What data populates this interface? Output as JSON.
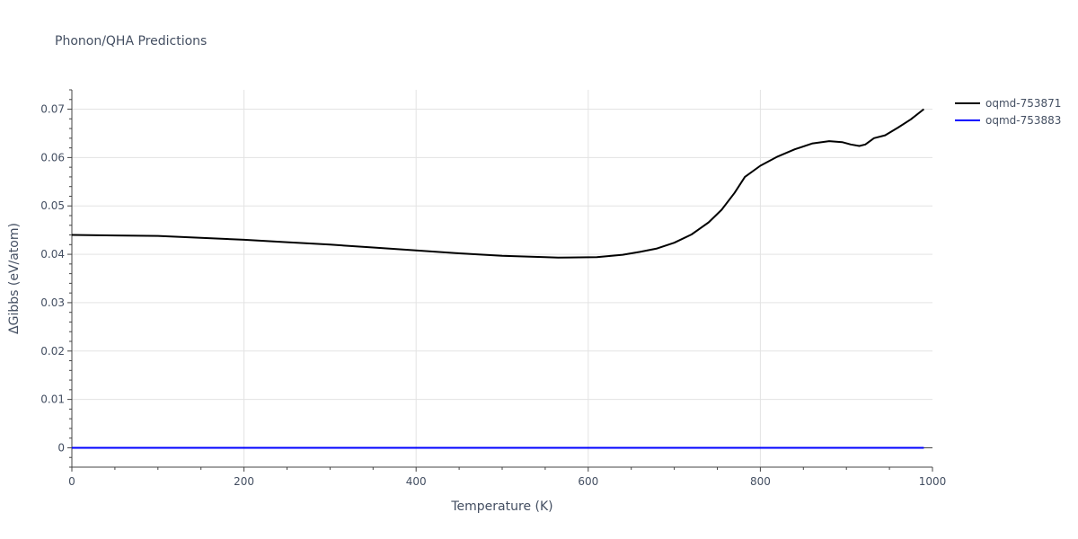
{
  "chart_data": {
    "type": "line",
    "title": "Phonon/QHA Predictions",
    "xlabel": "Temperature (K)",
    "ylabel": "ΔGibbs (eV/atom)",
    "xlim": [
      0,
      1000
    ],
    "ylim": [
      -0.004,
      0.074
    ],
    "xticks": [
      0,
      200,
      400,
      600,
      800,
      1000
    ],
    "xtick_labels": [
      "0",
      "200",
      "400",
      "600",
      "800",
      "1000"
    ],
    "yticks": [
      0,
      0.01,
      0.02,
      0.03,
      0.04,
      0.05,
      0.06,
      0.07
    ],
    "ytick_labels": [
      "0",
      "0.01",
      "0.02",
      "0.03",
      "0.04",
      "0.05",
      "0.06",
      "0.07"
    ],
    "grid": true,
    "legend_position": "top-right",
    "series": [
      {
        "name": "oqmd-753871",
        "color": "#000000",
        "x": [
          0,
          50,
          100,
          150,
          200,
          250,
          300,
          350,
          400,
          450,
          500,
          550,
          565,
          610,
          640,
          660,
          680,
          700,
          720,
          740,
          755,
          770,
          782,
          800,
          820,
          840,
          860,
          880,
          895,
          905,
          915,
          922,
          932,
          945,
          960,
          975,
          990
        ],
        "y": [
          0.044,
          0.0439,
          0.0438,
          0.0434,
          0.043,
          0.0425,
          0.042,
          0.0414,
          0.0408,
          0.0402,
          0.0397,
          0.0394,
          0.0393,
          0.0394,
          0.0399,
          0.0405,
          0.0412,
          0.0424,
          0.0441,
          0.0466,
          0.0492,
          0.0527,
          0.056,
          0.0583,
          0.0602,
          0.0617,
          0.0629,
          0.0634,
          0.0632,
          0.0627,
          0.0624,
          0.0627,
          0.064,
          0.0646,
          0.0662,
          0.0679,
          0.07
        ]
      },
      {
        "name": "oqmd-753883",
        "color": "#0000ff",
        "x": [
          0,
          990
        ],
        "y": [
          0,
          0
        ]
      }
    ]
  }
}
